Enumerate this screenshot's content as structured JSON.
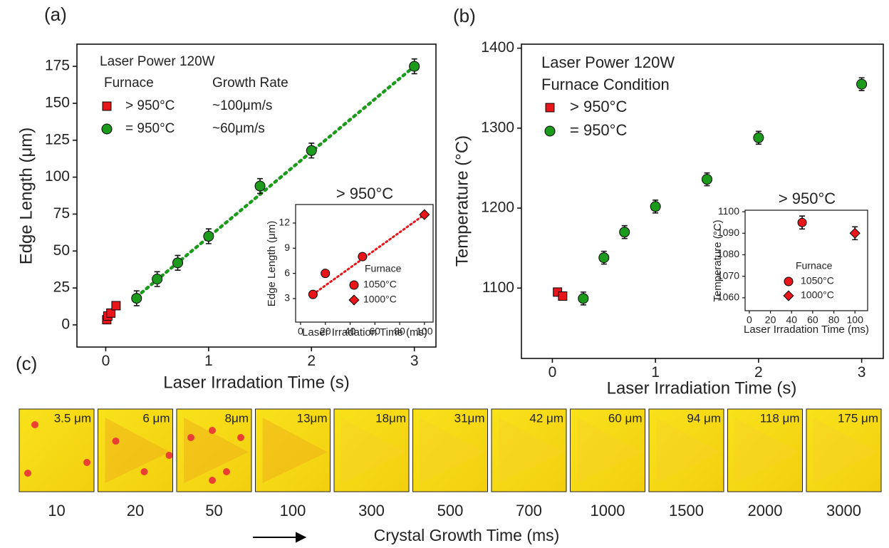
{
  "panel_labels": [
    "(a)",
    "(b)",
    "(c)"
  ],
  "chart_data": [
    {
      "type": "scatter",
      "title": "Laser Power 120W",
      "xlabel": "Laser Irradation Time (s)",
      "ylabel": "Edge Length (μm)",
      "legend_title": "Furnace",
      "legend_title2": "Growth Rate",
      "xlim": [
        -0.28,
        3.21
      ],
      "ylim": [
        -15,
        190
      ],
      "xticks": [
        0,
        1,
        2,
        3
      ],
      "yticks": [
        0,
        25,
        50,
        75,
        100,
        125,
        150,
        175
      ],
      "series": [
        {
          "name": "> 950°C",
          "rate": "~100μm/s",
          "marker": "square",
          "color": "#e8161b",
          "x": [
            0.01,
            0.02,
            0.05,
            0.1
          ],
          "values": [
            3.5,
            6,
            8,
            13
          ]
        },
        {
          "name": "= 950°C",
          "rate": "~60μm/s",
          "marker": "circle",
          "color": "#1c9a1c",
          "x": [
            0.3,
            0.5,
            0.7,
            1,
            1.5,
            2,
            3
          ],
          "values": [
            18,
            31,
            42,
            60,
            94,
            118,
            175
          ],
          "errors": [
            5,
            5,
            5,
            5,
            5,
            5,
            5
          ]
        }
      ],
      "fit": {
        "color": "#1c9a1c",
        "x": [
          0.3,
          3
        ],
        "values": [
          19,
          175
        ]
      }
    },
    {
      "type": "scatter",
      "title": "> 950°C",
      "xlabel": "Laser Irradation Time (ms)",
      "ylabel": "Edge Length (μm)",
      "legend_title": "Furnace",
      "xlim": [
        -4,
        107
      ],
      "ylim": [
        0.2,
        14.2
      ],
      "xticks": [
        0,
        20,
        40,
        60,
        80,
        100
      ],
      "yticks": [
        3,
        6,
        9,
        12
      ],
      "series": [
        {
          "name": "1050°C",
          "marker": "circle",
          "color": "#e8161b",
          "x": [
            10,
            20,
            50
          ],
          "values": [
            3.5,
            6,
            8
          ]
        },
        {
          "name": "1000°C",
          "marker": "diamond",
          "color": "#e8161b",
          "x": [
            100
          ],
          "values": [
            13
          ]
        }
      ],
      "fit": {
        "color": "#e8161b",
        "x": [
          10,
          100
        ],
        "values": [
          3.5,
          13
        ]
      }
    },
    {
      "type": "scatter",
      "title": "Laser Power 120W",
      "xlabel": "Laser Irradiation Time (s)",
      "ylabel": "Temperature (°C)",
      "legend_title": "Furnace Condition",
      "xlim": [
        -0.3,
        3.21
      ],
      "ylim": [
        1012,
        1405
      ],
      "xticks": [
        0,
        1,
        2,
        3
      ],
      "yticks": [
        1100,
        1200,
        1300,
        1400
      ],
      "series": [
        {
          "name": "> 950°C",
          "marker": "square",
          "color": "#e8161b",
          "x": [
            0.05,
            0.1
          ],
          "values": [
            1095,
            1090
          ]
        },
        {
          "name": "= 950°C",
          "marker": "circle",
          "color": "#1c9a1c",
          "x": [
            0.3,
            0.5,
            0.7,
            1,
            1.5,
            2,
            3
          ],
          "values": [
            1087,
            1138,
            1170,
            1202,
            1236,
            1288,
            1355
          ],
          "errors": [
            8,
            8,
            8,
            8,
            8,
            8,
            8
          ]
        }
      ]
    },
    {
      "type": "scatter",
      "title": "> 950°C",
      "xlabel": "Laser Irradation Time (ms)",
      "ylabel": "Temperature (°C)",
      "legend_title": "Furnace",
      "xlim": [
        -4,
        112
      ],
      "ylim": [
        1054,
        1100.7
      ],
      "xticks": [
        0,
        20,
        40,
        60,
        80,
        100
      ],
      "yticks": [
        1060,
        1070,
        1080,
        1090,
        1100
      ],
      "series": [
        {
          "name": "1050°C",
          "marker": "circle",
          "color": "#e8161b",
          "x": [
            50
          ],
          "values": [
            1095
          ],
          "errors": [
            3
          ]
        },
        {
          "name": "1000°C",
          "marker": "diamond",
          "color": "#e8161b",
          "x": [
            100
          ],
          "values": [
            1090
          ],
          "errors": [
            3
          ]
        }
      ]
    }
  ],
  "strip": {
    "xlabel": "Crystal Growth Time (ms)",
    "sizes": [
      "3.5 μm",
      "6 μm",
      "8μm",
      "13μm",
      "18μm",
      "31μm",
      "42 μm",
      "60 μm",
      "94 μm",
      "118 μm",
      "175 μm"
    ],
    "times": [
      10,
      20,
      50,
      100,
      300,
      500,
      700,
      1000,
      1500,
      2000,
      3000
    ]
  }
}
